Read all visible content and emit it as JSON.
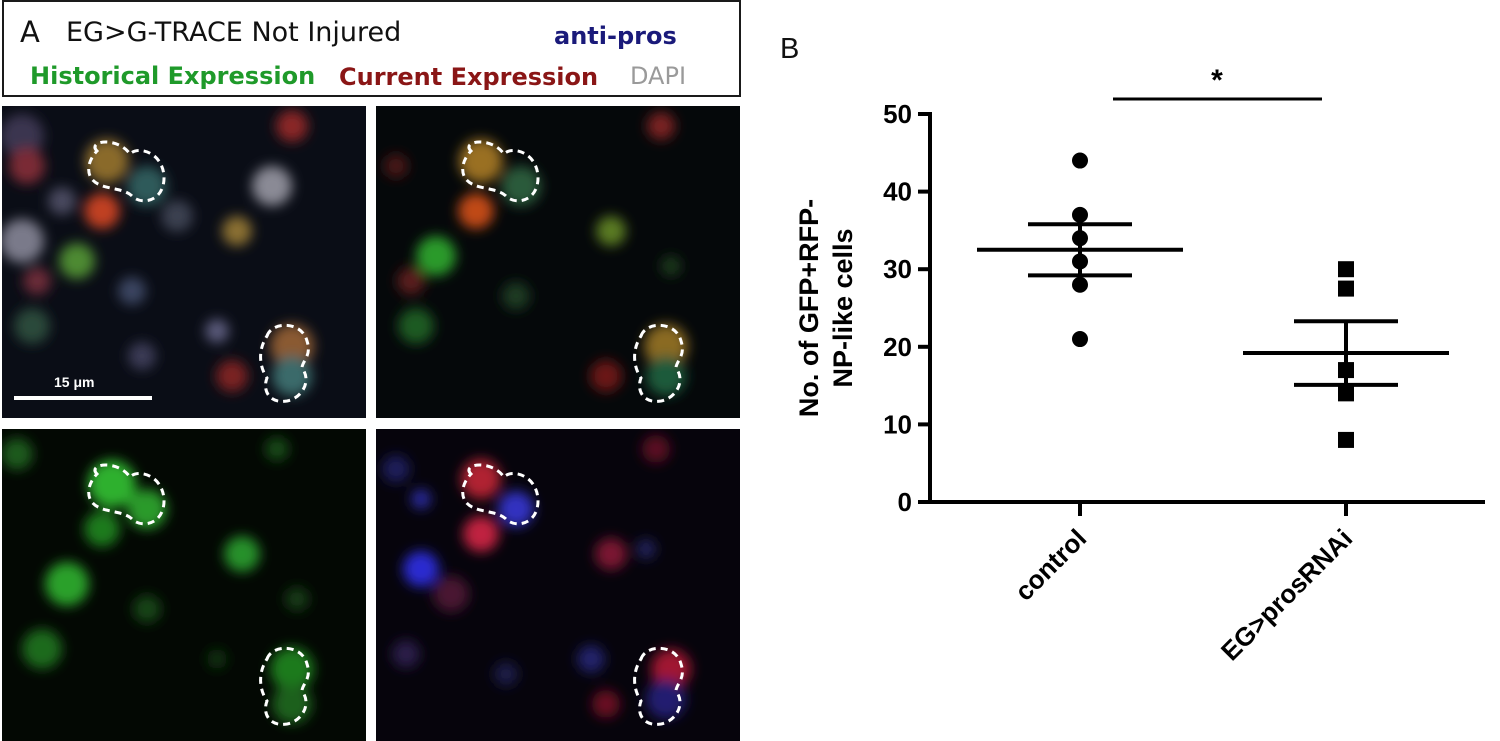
{
  "panel_a": {
    "label": "A",
    "title": "EG>G-TRACE Not Injured",
    "stain_label": "anti-pros",
    "historical_label": "Historical Expression",
    "current_label": "Current Expression",
    "dapi_label": "DAPI",
    "scale_bar_label": "15 μm",
    "colors": {
      "historical": "#1f9a2a",
      "current": "#8a1616",
      "anti_pros": "#1a1a7a",
      "dapi": "#9a9a9a"
    }
  },
  "panel_b": {
    "label": "B",
    "significance": "*"
  },
  "chart_data": {
    "type": "scatter",
    "title": "",
    "ylabel": "No. of GFP+RFP- NP-like cells",
    "ylabel_lines": [
      "No. of GFP+RFP-",
      "NP-like cells"
    ],
    "xlabel": "",
    "categories": [
      "control",
      "EG>prosRNAi"
    ],
    "ylim": [
      0,
      50
    ],
    "yticks": [
      0,
      10,
      20,
      30,
      40,
      50
    ],
    "grid": false,
    "series": [
      {
        "category": "control",
        "marker": "circle",
        "values": [
          44,
          37,
          34,
          31,
          28,
          21
        ],
        "mean": 32.5,
        "sem": 3.3
      },
      {
        "category": "EG>prosRNAi",
        "marker": "square",
        "values": [
          30,
          27.5,
          17,
          14,
          8
        ],
        "mean": 19.2,
        "sem": 4.1
      }
    ],
    "significance": {
      "between": [
        "control",
        "EG>prosRNAi"
      ],
      "label": "*"
    }
  }
}
